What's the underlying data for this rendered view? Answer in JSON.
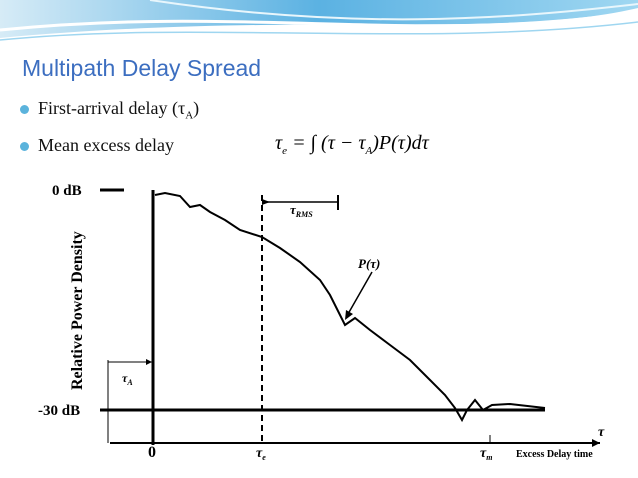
{
  "header": {
    "title": "Multipath Delay Spread"
  },
  "bullets": [
    {
      "text": "First-arrival delay (τ",
      "sub": "A",
      "tail": ")"
    },
    {
      "text": "Mean excess delay"
    }
  ],
  "formula": {
    "lhs": "τ",
    "lhs_sub": "e",
    "mid": " = ∫ (τ − τ",
    "mid_sub": "A",
    "rhs": ")P(τ)dτ"
  },
  "diagram": {
    "y_axis_label": "Relative Power Density",
    "top_level": "0 dB",
    "bottom_level": "-30 dB",
    "curve_label": "P(τ)",
    "rms_label": "τ",
    "rms_sub": "RMS",
    "first_arrival_label": "τ",
    "first_arrival_sub": "A",
    "origin_label": "0",
    "mean_label": "τ",
    "mean_sub": "e",
    "max_label": "τ",
    "max_sub": "m",
    "x_axis_label": "Excess Delay time",
    "x_axis_symbol": "τ"
  }
}
